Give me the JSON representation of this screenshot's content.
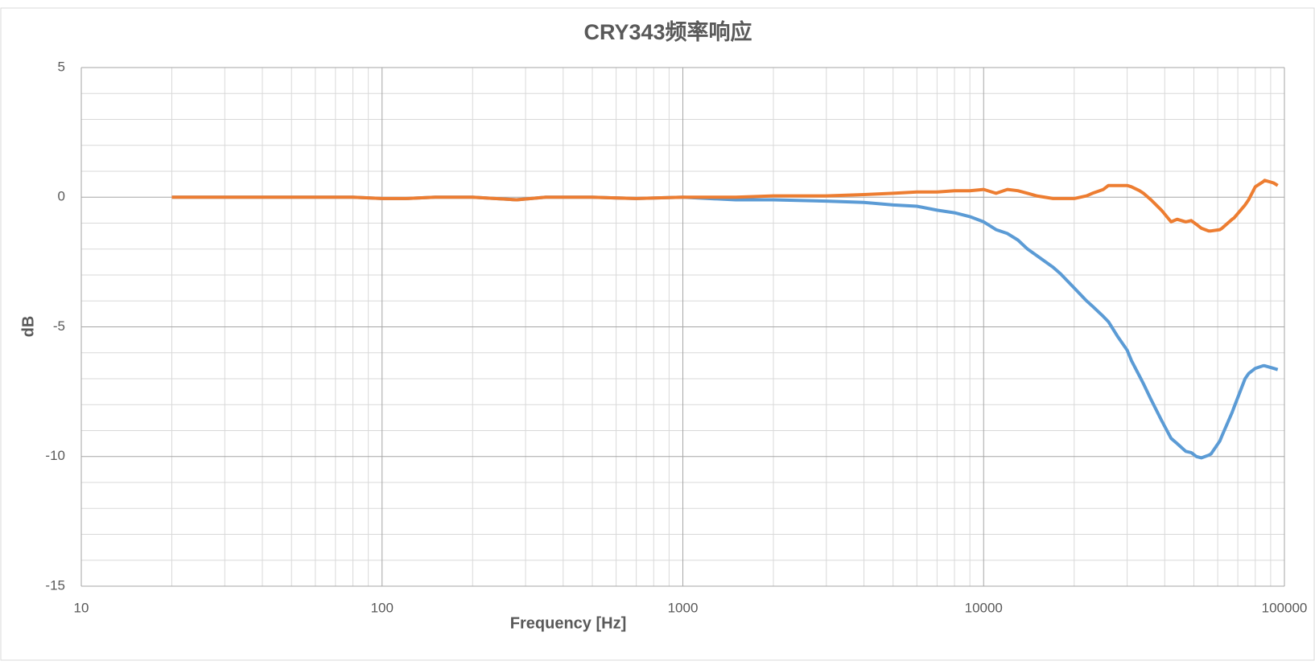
{
  "chart_data": {
    "type": "line",
    "title": "CRY343频率响应",
    "x_label": "Frequency [Hz]",
    "y_label": "dB",
    "x_log": true,
    "grid": true,
    "xlim": [
      10,
      100000
    ],
    "xticks": [
      10,
      100,
      1000,
      10000,
      100000
    ],
    "xminor_ticks": [
      20,
      30,
      40,
      50,
      60,
      70,
      80,
      90,
      200,
      300,
      400,
      500,
      600,
      700,
      800,
      900,
      2000,
      3000,
      4000,
      5000,
      6000,
      7000,
      8000,
      9000,
      20000,
      30000,
      40000,
      50000,
      60000,
      70000,
      80000,
      90000
    ],
    "ylim": [
      -15,
      5
    ],
    "yticks": [
      -15,
      -10,
      -5,
      0,
      5
    ],
    "yminor_ticks": [
      -14,
      -13,
      -12,
      -11,
      -9,
      -8,
      -7,
      -6,
      -4,
      -3,
      -2,
      -1,
      1,
      2,
      3,
      4
    ],
    "x": [
      20,
      30,
      50,
      80,
      100,
      120,
      150,
      200,
      280,
      350,
      500,
      700,
      1000,
      1500,
      2000,
      3000,
      4000,
      5000,
      6000,
      7000,
      8000,
      9000,
      10000,
      11000,
      12000,
      13000,
      14000,
      15000,
      17000,
      18000,
      20000,
      22000,
      23000,
      25000,
      26000,
      28000,
      30000,
      31000,
      33000,
      34000,
      36000,
      39000,
      42000,
      44000,
      47000,
      49000,
      51000,
      53000,
      56000,
      57000,
      61000,
      62000,
      67000,
      68000,
      74000,
      76000,
      80000,
      85000,
      86000,
      92000,
      95000
    ],
    "series": [
      {
        "color": "#5b9bd5",
        "values": [
          0,
          0,
          0,
          0,
          -0.05,
          -0.05,
          0,
          0,
          -0.1,
          0,
          0,
          -0.05,
          0,
          -0.1,
          -0.1,
          -0.15,
          -0.2,
          -0.3,
          -0.35,
          -0.5,
          -0.6,
          -0.75,
          -0.95,
          -1.25,
          -1.4,
          -1.65,
          -2.0,
          -2.25,
          -2.7,
          -2.95,
          -3.5,
          -4.0,
          -4.2,
          -4.6,
          -4.8,
          -5.4,
          -5.9,
          -6.3,
          -6.9,
          -7.2,
          -7.8,
          -8.6,
          -9.3,
          -9.5,
          -9.8,
          -9.85,
          -10.0,
          -10.05,
          -9.95,
          -9.9,
          -9.4,
          -9.2,
          -8.3,
          -8.1,
          -7.0,
          -6.8,
          -6.6,
          -6.5,
          -6.5,
          -6.6,
          -6.65
        ]
      },
      {
        "color": "#ed7d31",
        "values": [
          0,
          0,
          0,
          0,
          -0.05,
          -0.05,
          0,
          0,
          -0.1,
          0,
          0,
          -0.05,
          0,
          0,
          0.05,
          0.05,
          0.1,
          0.15,
          0.2,
          0.2,
          0.25,
          0.25,
          0.3,
          0.15,
          0.3,
          0.25,
          0.15,
          0.05,
          -0.05,
          -0.05,
          -0.05,
          0.05,
          0.15,
          0.3,
          0.45,
          0.45,
          0.45,
          0.4,
          0.25,
          0.15,
          -0.1,
          -0.5,
          -0.95,
          -0.85,
          -0.95,
          -0.9,
          -1.05,
          -1.2,
          -1.3,
          -1.3,
          -1.25,
          -1.2,
          -0.85,
          -0.8,
          -0.3,
          -0.1,
          0.4,
          0.6,
          0.65,
          0.55,
          0.45
        ]
      }
    ]
  }
}
